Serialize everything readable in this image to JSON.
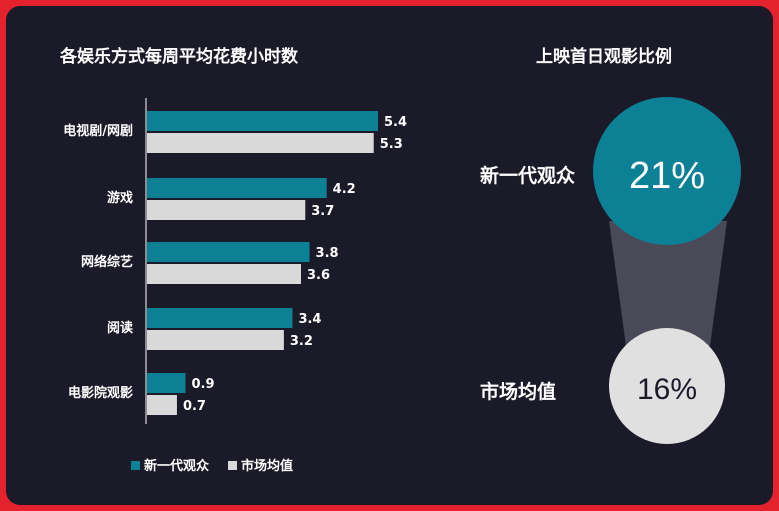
{
  "colors": {
    "frame": "#e4222e",
    "panel": "#1b1a29",
    "series_new": "#0c8196",
    "series_avg": "#d9d9d9",
    "text": "#ffffff"
  },
  "chart_data": [
    {
      "type": "bar",
      "orientation": "horizontal",
      "title": "各娱乐方式每周平均花费小时数",
      "categories": [
        "电视剧/网剧",
        "游戏",
        "网络综艺",
        "阅读",
        "电影院观影"
      ],
      "series": [
        {
          "name": "新一代观众",
          "values": [
            5.4,
            4.2,
            3.8,
            3.4,
            0.9
          ]
        },
        {
          "name": "市场均值",
          "values": [
            5.3,
            3.7,
            3.6,
            3.2,
            0.7
          ]
        }
      ],
      "value_labels": {
        "新一代观众": [
          "5.4",
          "4.2",
          "3.8",
          "3.4",
          "0.9"
        ],
        "市场均值": [
          "5.3",
          "3.7",
          "3.6",
          "3.2",
          "0.7"
        ]
      },
      "xlim": [
        0,
        5.4
      ],
      "grid": false,
      "legend": "bottom-left"
    },
    {
      "type": "pie",
      "title": "上映首日观影比例",
      "categories": [
        "新一代观众",
        "市场均值"
      ],
      "values": [
        21,
        16
      ],
      "value_labels": [
        "21%",
        "16%"
      ]
    }
  ]
}
